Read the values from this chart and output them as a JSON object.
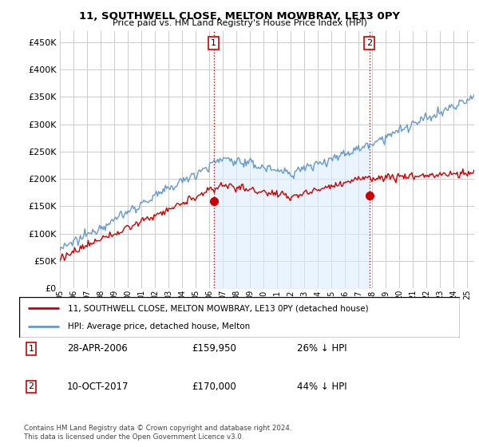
{
  "title": "11, SOUTHWELL CLOSE, MELTON MOWBRAY, LE13 0PY",
  "subtitle": "Price paid vs. HM Land Registry's House Price Index (HPI)",
  "ytick_values": [
    0,
    50000,
    100000,
    150000,
    200000,
    250000,
    300000,
    350000,
    400000,
    450000
  ],
  "ylim": [
    0,
    470000
  ],
  "xlim_start": 1995.0,
  "xlim_end": 2025.5,
  "purchase1": {
    "date_x": 2006.32,
    "price": 159950,
    "label": "1"
  },
  "purchase2": {
    "date_x": 2017.78,
    "price": 170000,
    "label": "2"
  },
  "legend_red": "11, SOUTHWELL CLOSE, MELTON MOWBRAY, LE13 0PY (detached house)",
  "legend_blue": "HPI: Average price, detached house, Melton",
  "table_row1": [
    "1",
    "28-APR-2006",
    "£159,950",
    "26% ↓ HPI"
  ],
  "table_row2": [
    "2",
    "10-OCT-2017",
    "£170,000",
    "44% ↓ HPI"
  ],
  "footer": "Contains HM Land Registry data © Crown copyright and database right 2024.\nThis data is licensed under the Open Government Licence v3.0.",
  "red_color": "#cc0000",
  "blue_color": "#6699cc",
  "blue_fill": "#ddeeff",
  "vline_color": "#cc0000",
  "grid_color": "#cccccc",
  "bg_color": "#ffffff"
}
